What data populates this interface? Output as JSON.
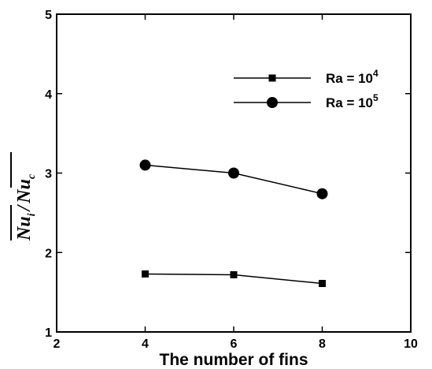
{
  "chart_data": {
    "type": "line",
    "xlabel": "The number of fins",
    "ylabel_left": {
      "base": "Nu",
      "sub": "i"
    },
    "ylabel_sep": "/",
    "ylabel_right": {
      "base": "Nu",
      "sub": "c"
    },
    "xlim": [
      2,
      10
    ],
    "ylim": [
      1,
      5
    ],
    "xticks": [
      2,
      4,
      6,
      8,
      10
    ],
    "yticks": [
      1,
      2,
      3,
      4,
      5
    ],
    "grid": false,
    "legend_position": "top-right",
    "series": [
      {
        "name_base": "Ra = 10",
        "name_sup": "4",
        "marker": "square",
        "x": [
          4,
          6,
          8
        ],
        "y": [
          1.73,
          1.72,
          1.61
        ]
      },
      {
        "name_base": "Ra = 10",
        "name_sup": "5",
        "marker": "circle",
        "x": [
          4,
          6,
          8
        ],
        "y": [
          3.1,
          3.0,
          2.74
        ]
      }
    ]
  }
}
